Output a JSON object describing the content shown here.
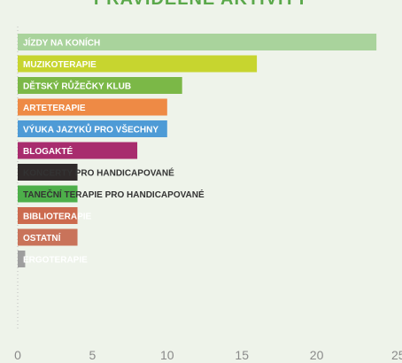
{
  "chart_data": {
    "type": "bar",
    "orientation": "horizontal",
    "title": "PRAVIDELNÉ AKTIVITY",
    "categories": [
      "JÍZDY NA KONÍCH",
      "MUZIKOTERAPIE",
      "DĚTSKÝ RŮŽEČKY KLUB",
      "ARTETERAPIE",
      "VÝUKA JAZYKŮ PRO VŠECHNY",
      "BLOGAKTÉ",
      "KONCERTY PRO HANDICAPOVANÉ",
      "TANEČNÍ TERAPIE PRO HANDICAPOVANÉ",
      "BIBLIOTERAPIE",
      "OSTATNÍ",
      "ERGOTERAPIE"
    ],
    "values": [
      24,
      16,
      11,
      10,
      10,
      8,
      4,
      4,
      4,
      4,
      0.5
    ],
    "colors": [
      "#a9d39c",
      "#c7d52f",
      "#7bb847",
      "#ee8a45",
      "#4e9bd6",
      "#a82c6e",
      "#2f2a2a",
      "#4daf4a",
      "#cc6a4e",
      "#c9735a",
      "#9e9e9e"
    ],
    "xlim": [
      0,
      25
    ],
    "xticks": [
      0,
      5,
      10,
      15,
      20,
      25
    ],
    "grid": false,
    "legend": "none"
  }
}
